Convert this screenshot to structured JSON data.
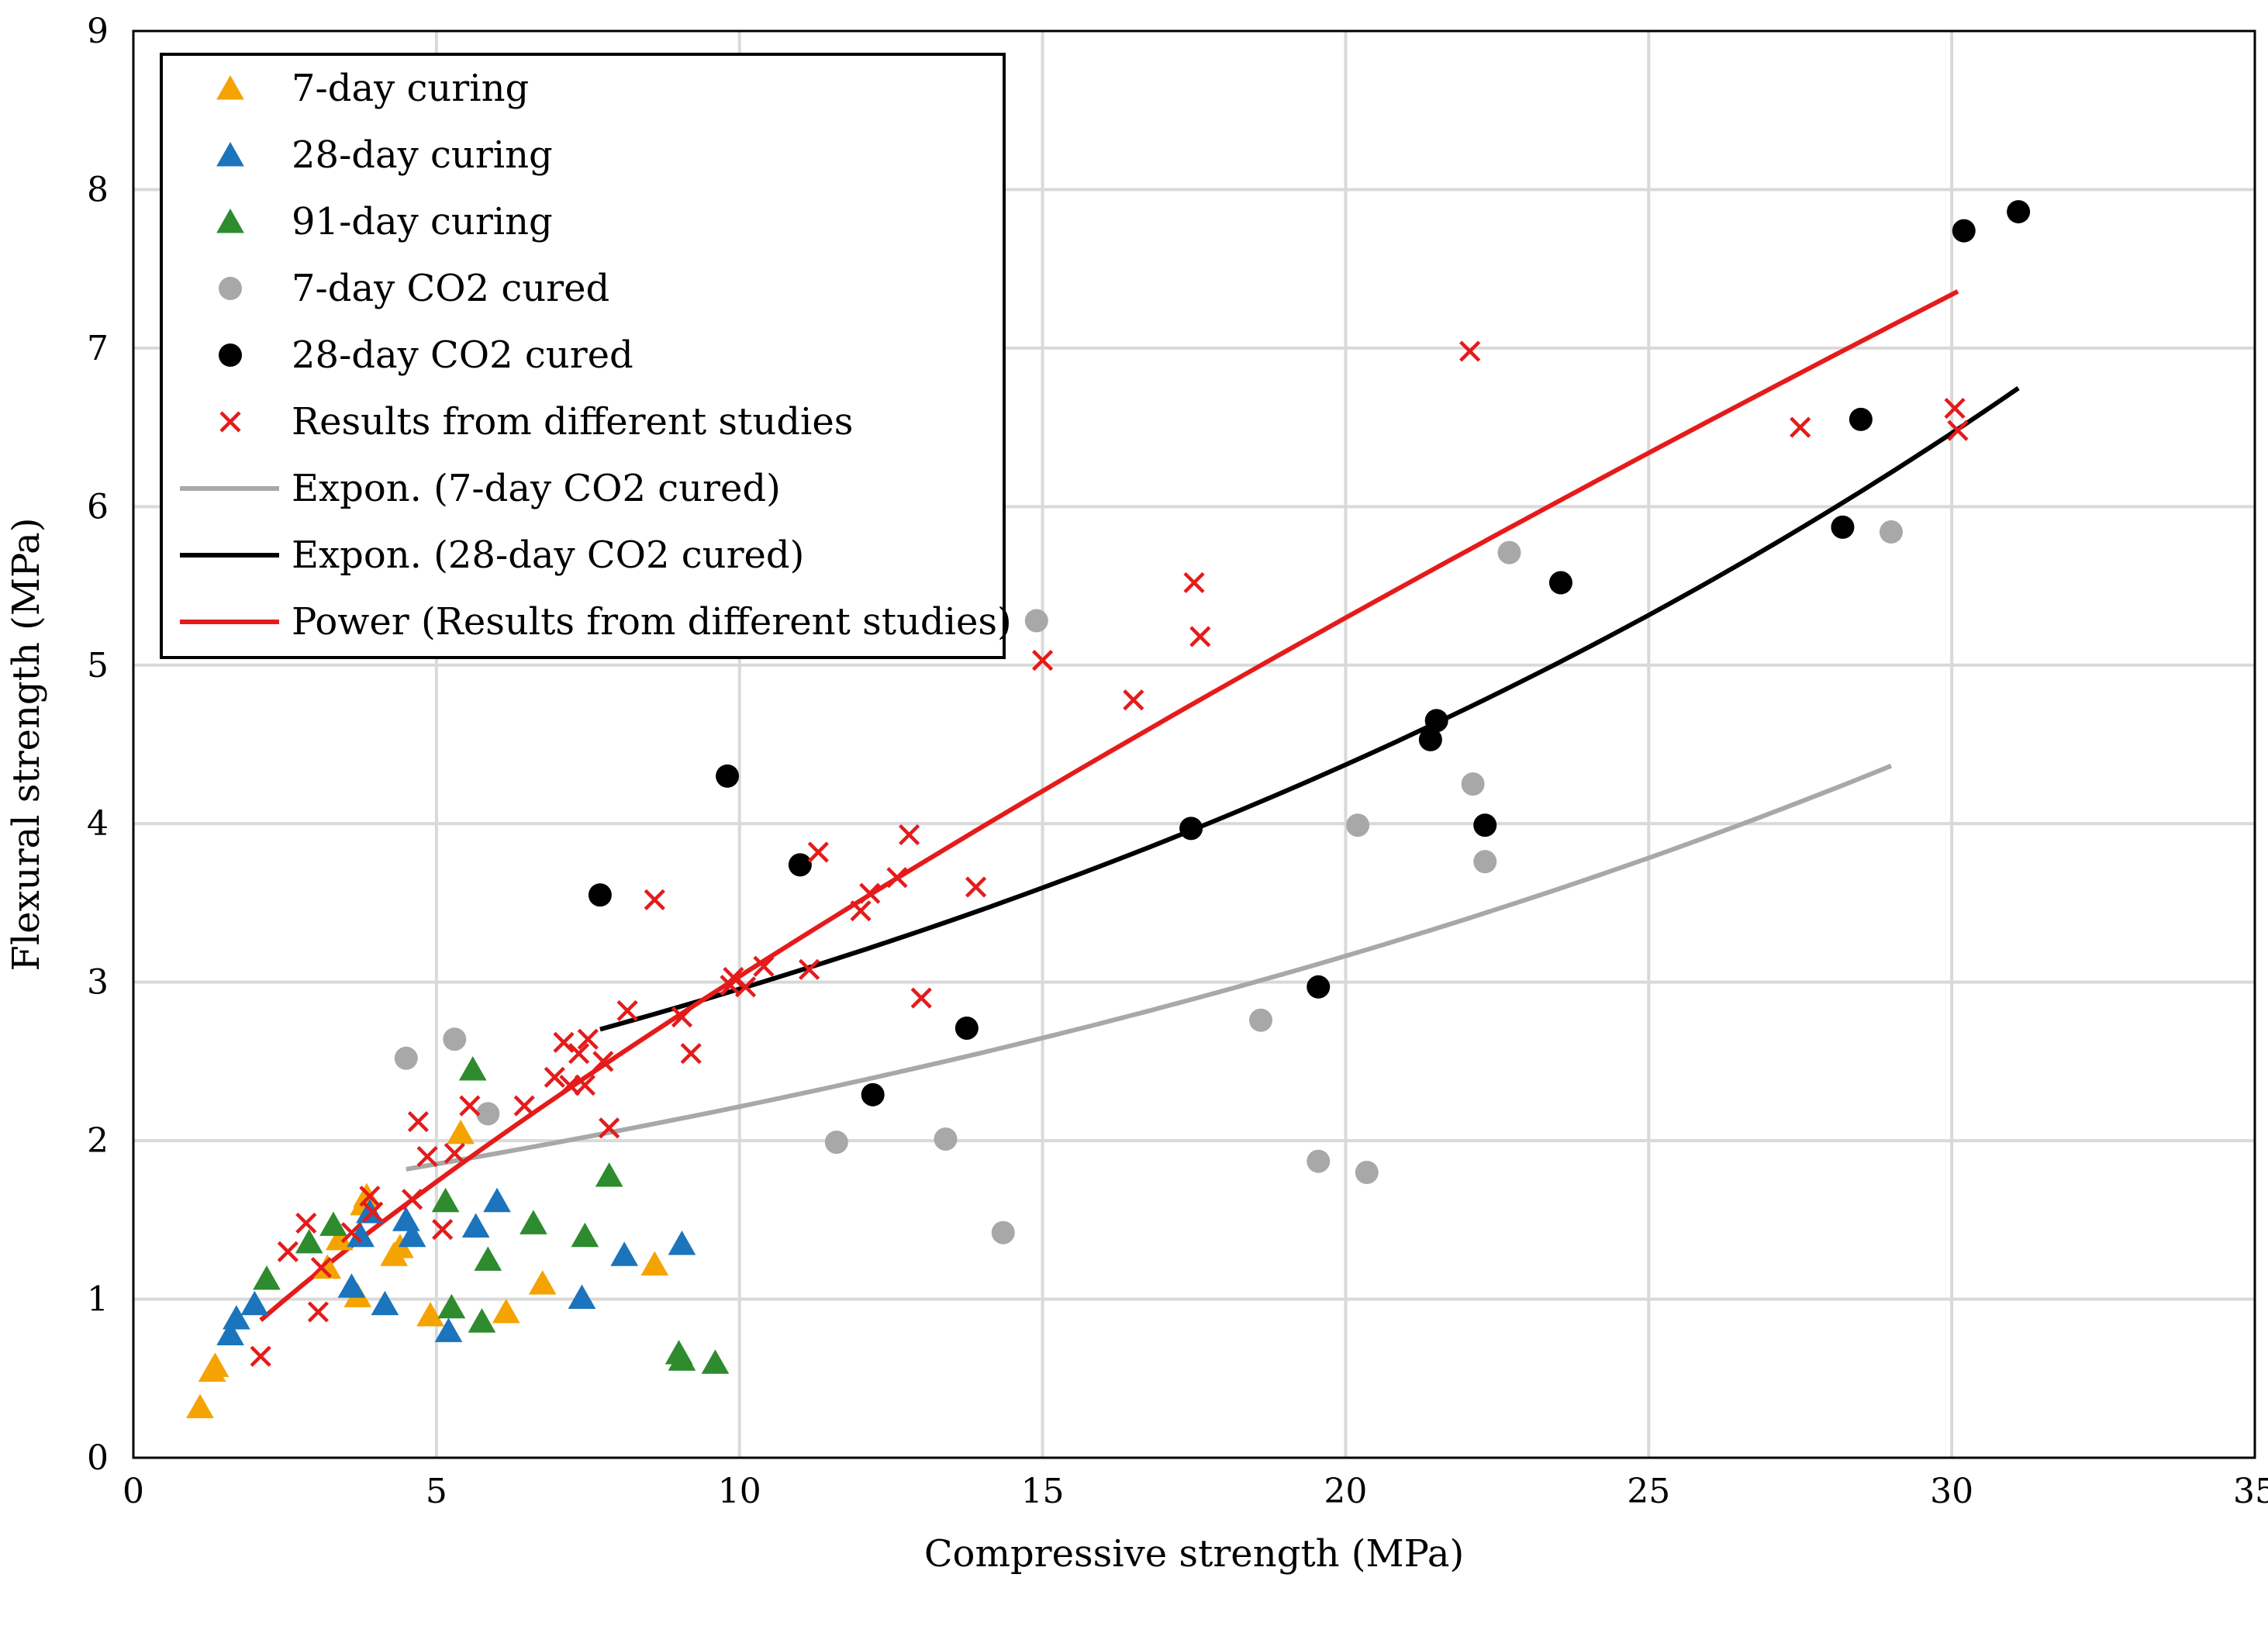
{
  "chart_data": {
    "type": "scatter",
    "title": "",
    "xlabel": "Compressive strength (MPa)",
    "ylabel": "Flexural strength (MPa)",
    "xlim": [
      0,
      35
    ],
    "ylim": [
      0,
      9
    ],
    "xticks": [
      "0",
      "5",
      "10",
      "15",
      "20",
      "25",
      "30",
      "35"
    ],
    "yticks": [
      "0",
      "1",
      "2",
      "3",
      "4",
      "5",
      "6",
      "7",
      "8",
      "9"
    ],
    "grid": true,
    "legend_position": "top-left",
    "colors": {
      "orange": "#F5A300",
      "blue": "#1B74BC",
      "green": "#2E8B2E",
      "gray": "#A8A8A8",
      "black": "#000000",
      "red": "#E51B1B",
      "grid": "#D9D9D9"
    },
    "series": [
      {
        "name": "7-day curing",
        "marker": "triangle",
        "color": "#F5A300",
        "points": [
          [
            1.1,
            0.32
          ],
          [
            1.3,
            0.55
          ],
          [
            1.35,
            0.58
          ],
          [
            3.2,
            1.2
          ],
          [
            3.4,
            1.38
          ],
          [
            3.7,
            1.02
          ],
          [
            3.8,
            1.6
          ],
          [
            3.85,
            1.65
          ],
          [
            4.3,
            1.28
          ],
          [
            4.4,
            1.33
          ],
          [
            4.9,
            0.9
          ],
          [
            5.4,
            2.05
          ],
          [
            6.15,
            0.92
          ],
          [
            6.75,
            1.1
          ],
          [
            8.6,
            1.22
          ]
        ]
      },
      {
        "name": "28-day curing",
        "marker": "triangle",
        "color": "#1B74BC",
        "points": [
          [
            1.6,
            0.78
          ],
          [
            1.7,
            0.88
          ],
          [
            2.0,
            0.97
          ],
          [
            3.6,
            1.08
          ],
          [
            3.75,
            1.4
          ],
          [
            3.9,
            1.55
          ],
          [
            4.15,
            0.97
          ],
          [
            4.5,
            1.5
          ],
          [
            4.6,
            1.4
          ],
          [
            5.2,
            0.8
          ],
          [
            5.65,
            1.46
          ],
          [
            6.0,
            1.62
          ],
          [
            7.4,
            1.01
          ],
          [
            8.1,
            1.28
          ],
          [
            9.05,
            1.35
          ]
        ]
      },
      {
        "name": "91-day curing",
        "marker": "triangle",
        "color": "#2E8B2E",
        "points": [
          [
            2.2,
            1.13
          ],
          [
            2.9,
            1.36
          ],
          [
            3.3,
            1.47
          ],
          [
            5.15,
            1.62
          ],
          [
            5.25,
            0.95
          ],
          [
            5.6,
            2.45
          ],
          [
            5.75,
            0.86
          ],
          [
            5.85,
            1.25
          ],
          [
            6.6,
            1.48
          ],
          [
            7.45,
            1.4
          ],
          [
            7.85,
            1.78
          ],
          [
            9.0,
            0.66
          ],
          [
            9.05,
            0.62
          ],
          [
            9.6,
            0.6
          ]
        ]
      },
      {
        "name": "7-day CO2 cured",
        "marker": "circle",
        "color": "#A8A8A8",
        "points": [
          [
            4.5,
            2.52
          ],
          [
            5.3,
            2.64
          ],
          [
            5.85,
            2.17
          ],
          [
            11.6,
            1.99
          ],
          [
            13.4,
            2.01
          ],
          [
            14.35,
            1.42
          ],
          [
            14.9,
            5.28
          ],
          [
            18.6,
            2.76
          ],
          [
            19.55,
            1.87
          ],
          [
            20.2,
            3.99
          ],
          [
            20.35,
            1.8
          ],
          [
            22.1,
            4.25
          ],
          [
            22.3,
            3.76
          ],
          [
            22.7,
            5.71
          ],
          [
            29.0,
            5.84
          ]
        ]
      },
      {
        "name": "28-day CO2 cured",
        "marker": "circle",
        "color": "#000000",
        "points": [
          [
            7.7,
            3.55
          ],
          [
            9.8,
            4.3
          ],
          [
            11.0,
            3.74
          ],
          [
            12.2,
            2.29
          ],
          [
            13.75,
            2.71
          ],
          [
            17.45,
            3.97
          ],
          [
            19.55,
            2.97
          ],
          [
            21.4,
            4.53
          ],
          [
            21.5,
            4.65
          ],
          [
            22.3,
            3.99
          ],
          [
            23.55,
            5.52
          ],
          [
            28.2,
            5.87
          ],
          [
            28.5,
            6.55
          ],
          [
            30.2,
            7.74
          ],
          [
            31.1,
            7.86
          ]
        ]
      },
      {
        "name": "Results from different studies",
        "marker": "x",
        "color": "#E51B1B",
        "points": [
          [
            2.1,
            0.64
          ],
          [
            2.55,
            1.3
          ],
          [
            2.85,
            1.48
          ],
          [
            3.05,
            0.92
          ],
          [
            3.1,
            1.2
          ],
          [
            3.6,
            1.42
          ],
          [
            3.9,
            1.65
          ],
          [
            3.95,
            1.55
          ],
          [
            4.6,
            1.63
          ],
          [
            4.7,
            2.12
          ],
          [
            4.85,
            1.9
          ],
          [
            5.1,
            1.44
          ],
          [
            5.3,
            1.92
          ],
          [
            5.55,
            2.22
          ],
          [
            6.45,
            2.22
          ],
          [
            6.95,
            2.4
          ],
          [
            7.1,
            2.62
          ],
          [
            7.2,
            2.35
          ],
          [
            7.35,
            2.55
          ],
          [
            7.45,
            2.35
          ],
          [
            7.5,
            2.64
          ],
          [
            7.75,
            2.5
          ],
          [
            7.85,
            2.08
          ],
          [
            8.15,
            2.82
          ],
          [
            8.6,
            3.52
          ],
          [
            9.05,
            2.78
          ],
          [
            9.2,
            2.55
          ],
          [
            9.85,
            2.98
          ],
          [
            9.9,
            3.03
          ],
          [
            10.1,
            2.97
          ],
          [
            10.4,
            3.1
          ],
          [
            11.15,
            3.08
          ],
          [
            11.3,
            3.82
          ],
          [
            12.0,
            3.45
          ],
          [
            12.15,
            3.56
          ],
          [
            12.6,
            3.66
          ],
          [
            12.8,
            3.93
          ],
          [
            13.0,
            2.9
          ],
          [
            13.9,
            3.6
          ],
          [
            15.0,
            5.03
          ],
          [
            16.5,
            4.78
          ],
          [
            17.5,
            5.52
          ],
          [
            17.6,
            5.18
          ],
          [
            22.05,
            6.98
          ],
          [
            27.5,
            6.5
          ],
          [
            30.05,
            6.62
          ],
          [
            30.1,
            6.48
          ]
        ]
      }
    ],
    "trendlines": [
      {
        "name": "Expon. (7-day CO2 cured)",
        "type": "exponential",
        "color": "#A8A8A8",
        "a": 1.55,
        "b": 0.0357,
        "x_range": [
          4.5,
          29.0
        ]
      },
      {
        "name": "Expon. (28-day CO2 cured)",
        "type": "exponential",
        "color": "#000000",
        "a": 2.0,
        "b": 0.0391,
        "x_range": [
          7.7,
          31.1
        ]
      },
      {
        "name": "Power (Results from different studies)",
        "type": "power",
        "color": "#E51B1B",
        "a": 0.478,
        "b": 0.803,
        "x_range": [
          2.1,
          30.1
        ]
      }
    ],
    "legend": [
      {
        "label": "7-day curing",
        "symbol": "triangle",
        "color": "#F5A300"
      },
      {
        "label": "28-day curing",
        "symbol": "triangle",
        "color": "#1B74BC"
      },
      {
        "label": "91-day curing",
        "symbol": "triangle",
        "color": "#2E8B2E"
      },
      {
        "label": "7-day CO2 cured",
        "symbol": "circle",
        "color": "#A8A8A8"
      },
      {
        "label": "28-day CO2 cured",
        "symbol": "circle",
        "color": "#000000"
      },
      {
        "label": "Results from different studies",
        "symbol": "x",
        "color": "#E51B1B"
      },
      {
        "label": "Expon. (7-day CO2 cured)",
        "symbol": "line",
        "color": "#A8A8A8"
      },
      {
        "label": "Expon. (28-day CO2 cured)",
        "symbol": "line",
        "color": "#000000"
      },
      {
        "label": "Power (Results from different studies)",
        "symbol": "line",
        "color": "#E51B1B"
      }
    ]
  }
}
